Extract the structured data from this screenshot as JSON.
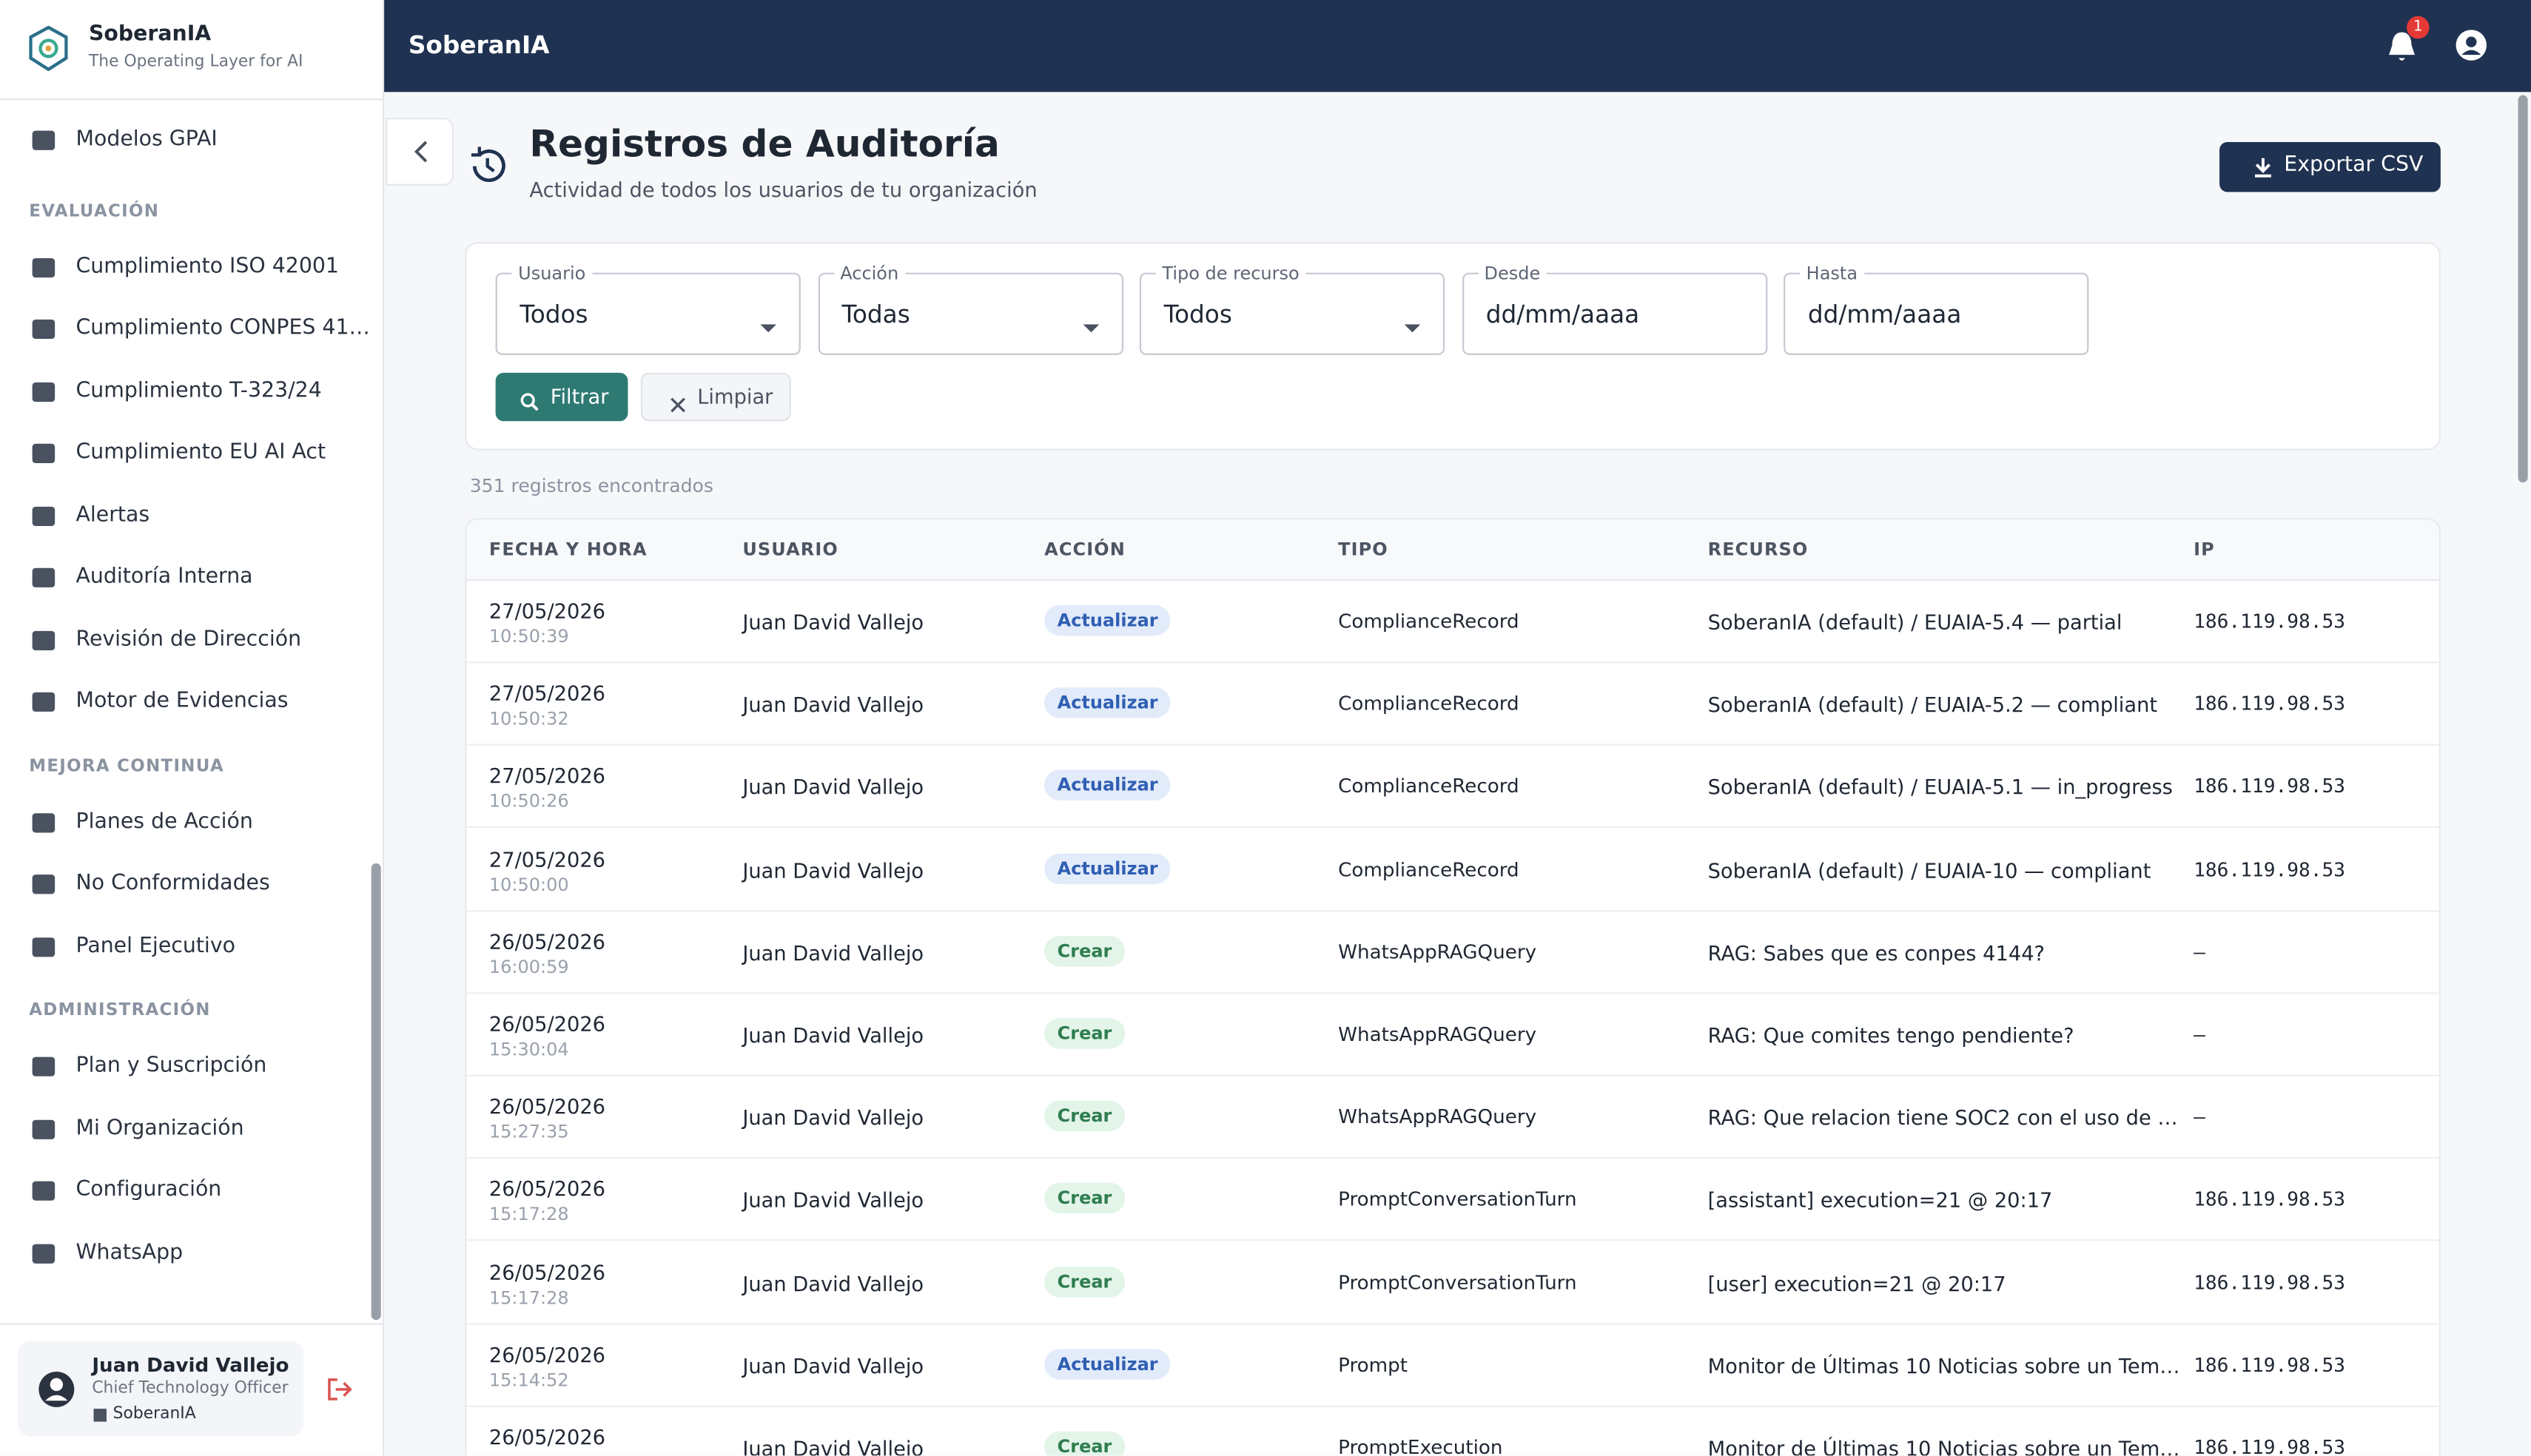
{
  "brand": {
    "name": "SoberanIA",
    "tagline": "The Operating Layer for AI"
  },
  "sidebar": {
    "top_items": [
      "Modelos GPAI"
    ],
    "sections": [
      {
        "title": "EVALUACIÓN",
        "items": [
          "Cumplimiento ISO 42001",
          "Cumplimiento CONPES 41…",
          "Cumplimiento T-323/24",
          "Cumplimiento EU AI Act",
          "Alertas",
          "Auditoría Interna",
          "Revisión de Dirección",
          "Motor de Evidencias"
        ]
      },
      {
        "title": "MEJORA CONTINUA",
        "items": [
          "Planes de Acción",
          "No Conformidades",
          "Panel Ejecutivo"
        ]
      },
      {
        "title": "ADMINISTRACIÓN",
        "items": [
          "Plan y Suscripción",
          "Mi Organización",
          "Configuración",
          "WhatsApp"
        ]
      }
    ],
    "user": {
      "name": "Juan David Vallejo",
      "role": "Chief Technology Officer",
      "org": "SoberanIA"
    }
  },
  "topbar": {
    "title": "SoberanIA",
    "notifications": "1"
  },
  "header": {
    "title": "Registros de Auditoría",
    "subtitle": "Actividad de todos los usuarios de tu organización",
    "export": "Exportar CSV"
  },
  "filters": {
    "fields": [
      {
        "label": "Usuario",
        "value": "Todos",
        "select": true
      },
      {
        "label": "Acción",
        "value": "Todas",
        "select": true
      },
      {
        "label": "Tipo de recurso",
        "value": "Todos",
        "select": true
      },
      {
        "label": "Desde",
        "value": "dd/mm/aaaa",
        "select": false
      },
      {
        "label": "Hasta",
        "value": "dd/mm/aaaa",
        "select": false
      }
    ],
    "filter_button": "Filtrar",
    "clear_button": "Limpiar"
  },
  "count": "351 registros encontrados",
  "table": {
    "headers": [
      "FECHA Y HORA",
      "USUARIO",
      "ACCIÓN",
      "TIPO",
      "RECURSO",
      "IP"
    ],
    "rows": [
      {
        "date": "27/05/2026",
        "time": "10:50:39",
        "user": "Juan David Vallejo",
        "action": "Actualizar",
        "type": "ComplianceRecord",
        "resource": "SoberanIA (default) / EUAIA-5.4 — partial",
        "ip": "186.119.98.53"
      },
      {
        "date": "27/05/2026",
        "time": "10:50:32",
        "user": "Juan David Vallejo",
        "action": "Actualizar",
        "type": "ComplianceRecord",
        "resource": "SoberanIA (default) / EUAIA-5.2 — compliant",
        "ip": "186.119.98.53"
      },
      {
        "date": "27/05/2026",
        "time": "10:50:26",
        "user": "Juan David Vallejo",
        "action": "Actualizar",
        "type": "ComplianceRecord",
        "resource": "SoberanIA (default) / EUAIA-5.1 — in_progress",
        "ip": "186.119.98.53"
      },
      {
        "date": "27/05/2026",
        "time": "10:50:00",
        "user": "Juan David Vallejo",
        "action": "Actualizar",
        "type": "ComplianceRecord",
        "resource": "SoberanIA (default) / EUAIA-10 — compliant",
        "ip": "186.119.98.53"
      },
      {
        "date": "26/05/2026",
        "time": "16:00:59",
        "user": "Juan David Vallejo",
        "action": "Crear",
        "type": "WhatsAppRAGQuery",
        "resource": "RAG: Sabes que es conpes 4144?",
        "ip": "—"
      },
      {
        "date": "26/05/2026",
        "time": "15:30:04",
        "user": "Juan David Vallejo",
        "action": "Crear",
        "type": "WhatsAppRAGQuery",
        "resource": "RAG: Que comites tengo pendiente?",
        "ip": "—"
      },
      {
        "date": "26/05/2026",
        "time": "15:27:35",
        "user": "Juan David Vallejo",
        "action": "Crear",
        "type": "WhatsAppRAGQuery",
        "resource": "RAG: Que relacion tiene SOC2 con el uso de …",
        "ip": "—"
      },
      {
        "date": "26/05/2026",
        "time": "15:17:28",
        "user": "Juan David Vallejo",
        "action": "Crear",
        "type": "PromptConversationTurn",
        "resource": "[assistant] execution=21 @ 20:17",
        "ip": "186.119.98.53"
      },
      {
        "date": "26/05/2026",
        "time": "15:17:28",
        "user": "Juan David Vallejo",
        "action": "Crear",
        "type": "PromptConversationTurn",
        "resource": "[user] execution=21 @ 20:17",
        "ip": "186.119.98.53"
      },
      {
        "date": "26/05/2026",
        "time": "15:14:52",
        "user": "Juan David Vallejo",
        "action": "Actualizar",
        "type": "Prompt",
        "resource": "Monitor de Últimas 10 Noticias sobre un Tem…",
        "ip": "186.119.98.53"
      },
      {
        "date": "26/05/2026",
        "user": "Juan David Vallejo",
        "action": "Crear",
        "type": "PromptExecution",
        "resource": "Monitor de Últimas 10 Noticias sobre un Tem…",
        "ip": "186.119.98.53"
      }
    ]
  }
}
